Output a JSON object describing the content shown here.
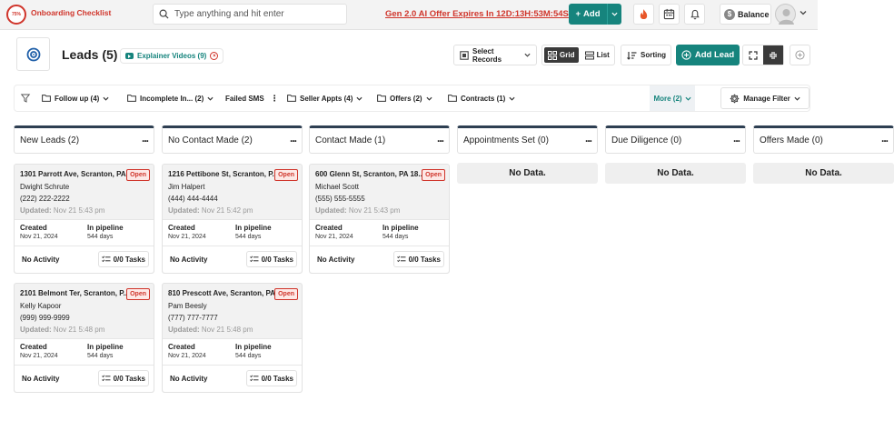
{
  "topbar": {
    "progress_label": "75%",
    "onboarding_label": "Onboarding Checklist",
    "search_placeholder": "Type anything and hit enter",
    "offer_text": "Gen 2.0 AI Offer Expires In 12D:13H:53M:54S",
    "add_label": "Add",
    "balance_label": "Balance",
    "icons": [
      "fire-icon",
      "calendar-icon",
      "bell-icon",
      "dollar-icon",
      "chevron-down-icon"
    ]
  },
  "header": {
    "title": "Leads (5)",
    "explainer_label": "Explainer Videos (9)",
    "select_records_label": "Select Records",
    "grid_label": "Grid",
    "list_label": "List",
    "sorting_label": "Sorting",
    "add_lead_label": "Add Lead"
  },
  "filters": {
    "items": [
      {
        "label": "Follow up (4)"
      },
      {
        "label": "Incomplete In... (2)"
      },
      {
        "label": "Failed SMS"
      },
      {
        "label": "Seller Appts (4)"
      },
      {
        "label": "Offers (2)"
      },
      {
        "label": "Contracts (1)"
      }
    ],
    "more_label": "More (2)",
    "manage_label": "Manage Filter"
  },
  "columns": [
    {
      "title": "New Leads (2)"
    },
    {
      "title": "No Contact Made (2)"
    },
    {
      "title": "Contact Made (1)"
    },
    {
      "title": "Appointments Set (0)",
      "empty": "No Data."
    },
    {
      "title": "Due Diligence (0)",
      "empty": "No Data."
    },
    {
      "title": "Offers Made (0)",
      "empty": "No Data."
    }
  ],
  "labels": {
    "open": "Open",
    "updated_prefix": "Updated:",
    "created": "Created",
    "in_pipeline": "In pipeline",
    "no_activity": "No Activity",
    "tasks": "0/0 Tasks"
  },
  "cards": [
    {
      "address": "1301 Parrott Ave, Scranton, PA...",
      "name": "Dwight Schrute",
      "phone": "(222) 222-2222",
      "updated": "Nov 21 5:43 pm",
      "created": "Nov 21, 2024",
      "pipeline": "544 days"
    },
    {
      "address": "2101 Belmont Ter, Scranton, P...",
      "name": "Kelly Kapoor",
      "phone": "(999) 999-9999",
      "updated": "Nov 21 5:48 pm",
      "created": "Nov 21, 2024",
      "pipeline": "544 days"
    },
    {
      "address": "1216 Pettibone St, Scranton, P...",
      "name": "Jim Halpert",
      "phone": "(444) 444-4444",
      "updated": "Nov 21 5:42 pm",
      "created": "Nov 21, 2024",
      "pipeline": "544 days"
    },
    {
      "address": "810 Prescott Ave, Scranton, PA...",
      "name": "Pam Beesly",
      "phone": "(777) 777-7777",
      "updated": "Nov 21 5:48 pm",
      "created": "Nov 21, 2024",
      "pipeline": "544 days"
    },
    {
      "address": "600 Glenn St, Scranton, PA 18...",
      "name": "Michael Scott",
      "phone": "(555) 555-5555",
      "updated": "Nov 21 5:43 pm",
      "created": "Nov 21, 2024",
      "pipeline": "544 days"
    }
  ],
  "colors": {
    "accent": "#16847d",
    "alert": "#d0352b",
    "column_bar": "#2e3f52"
  }
}
